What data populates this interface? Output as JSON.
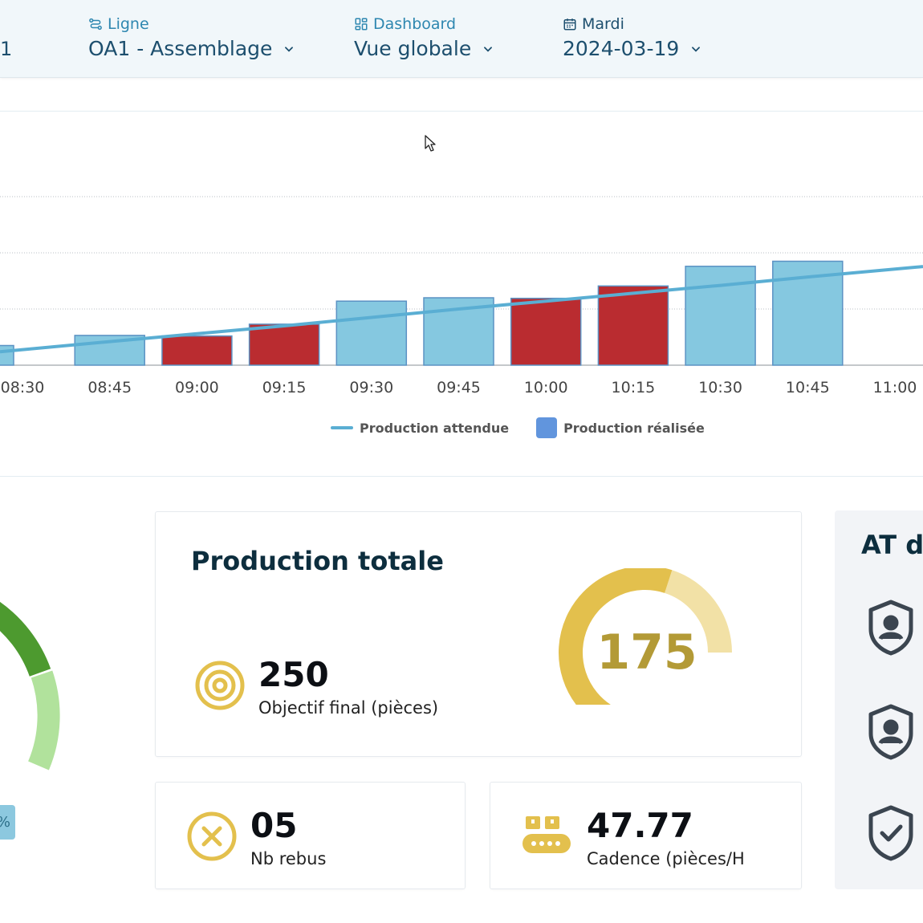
{
  "topbar": {
    "clipped_value": "1",
    "line": {
      "label": "Ligne",
      "value": "OA1 - Assemblage"
    },
    "dashboard": {
      "label": "Dashboard",
      "value": "Vue globale"
    },
    "date": {
      "label": "Mardi",
      "value": "2024-03-19"
    }
  },
  "chart_data": {
    "type": "bar",
    "categories": [
      "08:30",
      "08:45",
      "09:00",
      "09:15",
      "09:30",
      "09:45",
      "10:00",
      "10:15",
      "10:30",
      "10:45",
      "11:00"
    ],
    "series": [
      {
        "name": "Production réalisée",
        "values": [
          null,
          53,
          52,
          73,
          114,
          120,
          119,
          141,
          176,
          185,
          null
        ],
        "status": [
          "ok",
          "ok",
          "under",
          "under",
          "ok",
          "ok",
          "under",
          "under",
          "ok",
          "ok",
          "ok"
        ]
      },
      {
        "name": "Production attendue",
        "values": [
          null,
          42,
          56,
          70,
          85,
          100,
          114,
          128,
          142,
          157,
          171
        ]
      }
    ],
    "edge_bar_value": 35,
    "ylim": [
      0,
      300
    ],
    "grid": true,
    "legend": "bottom-center",
    "colors": {
      "ok": "#85c8e0",
      "under": "#ba2c30",
      "line": "#5aaed3"
    }
  },
  "legend": {
    "expected": "Production attendue",
    "actual": "Production réalisée"
  },
  "production_card": {
    "title": "Production totale",
    "target_value": "250",
    "target_label": "Objectif final (pièces)",
    "gauge_value": "175",
    "gauge_fraction": 0.7,
    "accent": "#e3c04d",
    "accent_light": "#f2e1a6"
  },
  "scrap_card": {
    "value": "05",
    "label": "Nb rebus"
  },
  "rate_card": {
    "value": "47.77",
    "label": "Cadence (pièces/H"
  },
  "right_panel": {
    "title": "AT de"
  },
  "left_gauge": {
    "pill_text": "%",
    "dark": "#4d9a2f",
    "light": "#b1e29c"
  }
}
